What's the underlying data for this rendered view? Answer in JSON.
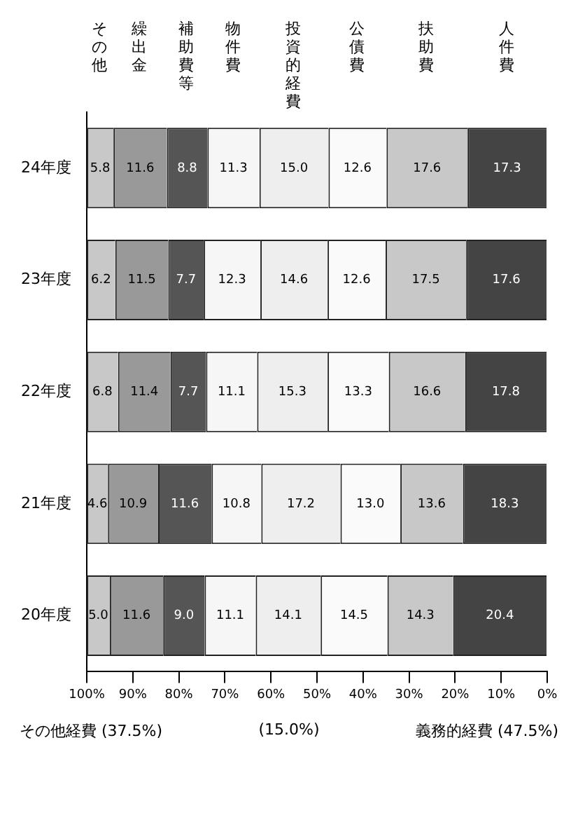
{
  "chart_data": {
    "type": "bar",
    "orientation": "horizontal",
    "stacked": true,
    "categories": [
      "24年度",
      "23年度",
      "22年度",
      "21年度",
      "20年度"
    ],
    "series": [
      {
        "name": "人件費",
        "color": "#444444",
        "values": [
          17.3,
          17.6,
          17.8,
          18.3,
          20.4
        ],
        "value_labels": [
          "17.3",
          "17.6",
          "17.8",
          "18.3",
          "20.4"
        ]
      },
      {
        "name": "扶助費",
        "color": "#c8c8c8",
        "values": [
          17.6,
          17.5,
          16.6,
          13.6,
          14.3
        ],
        "value_labels": [
          "17.6",
          "17.5",
          "16.6",
          "13.6",
          "14.3"
        ]
      },
      {
        "name": "公債費",
        "color": "#fafafa",
        "values": [
          12.6,
          12.6,
          13.3,
          13.0,
          14.5
        ],
        "value_labels": [
          "12.6",
          "12.6",
          "13.3",
          "13.0",
          "14.5"
        ]
      },
      {
        "name": "投資的経費",
        "color": "#eeeeee",
        "values": [
          15.0,
          14.6,
          15.3,
          17.2,
          14.1
        ],
        "value_labels": [
          "15.0",
          "14.6",
          "15.3",
          "17.2",
          "14.1"
        ]
      },
      {
        "name": "物件費",
        "color": "#f6f6f6",
        "values": [
          11.3,
          12.3,
          11.1,
          10.8,
          11.1
        ],
        "value_labels": [
          "11.3",
          "12.3",
          "11.1",
          "10.8",
          "11.1"
        ]
      },
      {
        "name": "補助費等",
        "color": "#555555",
        "values": [
          8.8,
          7.7,
          7.7,
          11.6,
          9.0
        ],
        "value_labels": [
          "8.8",
          "7.7",
          "7.7",
          "11.6",
          "9.0"
        ]
      },
      {
        "name": "繰出金",
        "color": "#999999",
        "values": [
          11.6,
          11.5,
          11.4,
          10.9,
          11.6
        ],
        "value_labels": [
          "11.6",
          "11.5",
          "11.4",
          "10.9",
          "11.6"
        ]
      },
      {
        "name": "その他",
        "color": "#c8c8c8",
        "values": [
          5.8,
          6.2,
          6.8,
          4.6,
          5.0
        ],
        "value_labels": [
          "5.8",
          "6.2",
          "6.8",
          "4.6",
          "5.0"
        ]
      }
    ],
    "xlim": [
      100,
      0
    ],
    "xticks": [
      {
        "value": 100,
        "label": "100%"
      },
      {
        "value": 90,
        "label": "90%"
      },
      {
        "value": 80,
        "label": "80%"
      },
      {
        "value": 70,
        "label": "70%"
      },
      {
        "value": 60,
        "label": "60%"
      },
      {
        "value": 50,
        "label": "50%"
      },
      {
        "value": 40,
        "label": "40%"
      },
      {
        "value": 30,
        "label": "30%"
      },
      {
        "value": 20,
        "label": "20%"
      },
      {
        "value": 10,
        "label": "10%"
      },
      {
        "value": 0,
        "label": "0%"
      }
    ],
    "grid": false,
    "annotations": [
      "その他経費 (37.5%)",
      "(15.0%)",
      "義務的経費 (47.5%)"
    ]
  }
}
